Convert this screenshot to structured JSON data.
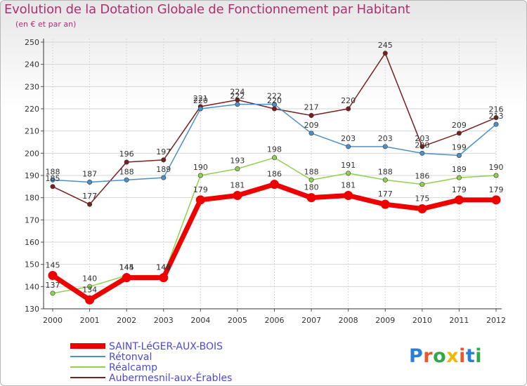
{
  "header": {
    "title": "Evolution de la Dotation Globale de Fonctionnement par Habitant",
    "subtitle": "(en € et par an)"
  },
  "logo": {
    "text": "Proxiti",
    "letters": [
      {
        "ch": "P",
        "color": "#2a7fd4"
      },
      {
        "ch": "r",
        "color": "#e8562a"
      },
      {
        "ch": "o",
        "color": "#2ea84a"
      },
      {
        "ch": "x",
        "color": "#f2b705"
      },
      {
        "ch": "i",
        "color": "#e8562a"
      },
      {
        "ch": "t",
        "color": "#2a7fd4"
      },
      {
        "ch": "i",
        "color": "#2ea84a"
      }
    ]
  },
  "chart_data": {
    "type": "line",
    "title": "Evolution de la Dotation Globale de Fonctionnement par Habitant",
    "subtitle": "(en € et par an)",
    "x": [
      "2000",
      "2001",
      "2002",
      "2003",
      "2004",
      "2005",
      "2006",
      "2007",
      "2008",
      "2009",
      "2010",
      "2011",
      "2012"
    ],
    "ylim": [
      130,
      250
    ],
    "yticks": [
      130,
      140,
      150,
      160,
      170,
      180,
      190,
      200,
      210,
      220,
      230,
      240,
      250
    ],
    "grid": true,
    "legend_position": "bottom-left",
    "series": [
      {
        "name": "SAINT-LéGER-AUX-BOIS",
        "color": "#ee0000",
        "values": [
          145,
          134,
          144,
          144,
          179,
          181,
          186,
          180,
          181,
          177,
          175,
          179,
          179
        ]
      },
      {
        "name": "Rétonval",
        "color": "#4d90c8",
        "values": [
          188,
          187,
          188,
          189,
          220,
          222,
          222,
          209,
          203,
          203,
          200,
          199,
          213
        ]
      },
      {
        "name": "Réalcamp",
        "color": "#8fd14f",
        "values": [
          137,
          140,
          145,
          145,
          190,
          193,
          198,
          188,
          191,
          188,
          186,
          189,
          190
        ]
      },
      {
        "name": "Aubermesnil-aux-Érables",
        "color": "#7a1f1f",
        "values": [
          185,
          177,
          196,
          197,
          221,
          224,
          220,
          217,
          220,
          245,
          203,
          209,
          216
        ]
      }
    ]
  }
}
